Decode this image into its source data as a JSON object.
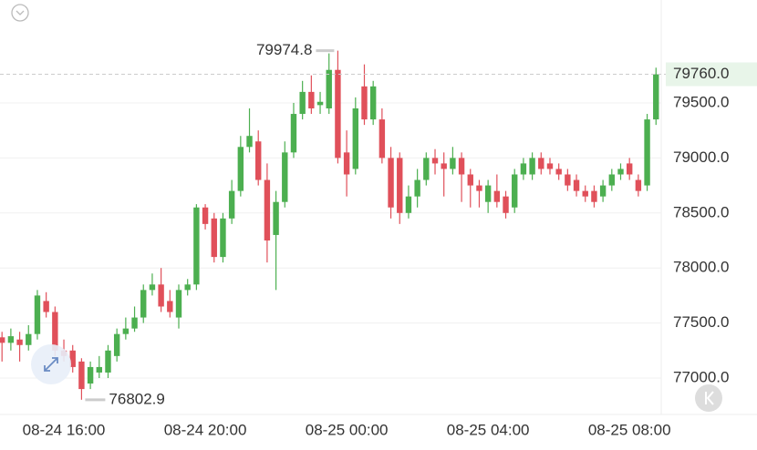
{
  "chart_data": {
    "type": "candlestick",
    "categories": [
      null,
      null,
      null,
      null,
      null,
      null,
      null,
      "08-24 16:00",
      null,
      null,
      null,
      null,
      null,
      null,
      null,
      null,
      null,
      null,
      null,
      null,
      null,
      null,
      null,
      "08-24 20:00",
      null,
      null,
      null,
      null,
      null,
      null,
      null,
      null,
      null,
      null,
      null,
      null,
      null,
      null,
      null,
      "08-25 00:00",
      null,
      null,
      null,
      null,
      null,
      null,
      null,
      null,
      null,
      null,
      null,
      null,
      null,
      null,
      null,
      "08-25 04:00",
      null,
      null,
      null,
      null,
      null,
      null,
      null,
      null,
      null,
      null,
      null,
      null,
      null,
      null,
      null,
      "08-25 08:00",
      null,
      null,
      null
    ],
    "open": [
      77370,
      77320,
      77350,
      77300,
      77400,
      77700,
      77600,
      77250,
      77250,
      77150,
      76950,
      77050,
      77050,
      77200,
      77400,
      77450,
      77550,
      77800,
      77850,
      77700,
      77550,
      77800,
      77850,
      78550,
      78450,
      78100,
      78450,
      78700,
      79100,
      79150,
      78800,
      78300,
      78600,
      79050,
      79400,
      79600,
      79480,
      79450,
      79800,
      79050,
      78900,
      79650,
      79350,
      79350,
      79000,
      79000,
      78500,
      78650,
      78800,
      79000,
      78950,
      78900,
      79000,
      78850,
      78750,
      78600,
      78700,
      78650,
      78550,
      78850,
      78850,
      79000,
      78950,
      78900,
      78850,
      78800,
      78700,
      78700,
      78650,
      78750,
      78850,
      78950,
      78800,
      78750,
      79350
    ],
    "high": [
      77420,
      77450,
      77420,
      77480,
      77800,
      77780,
      77650,
      77350,
      77300,
      77180,
      77150,
      77200,
      77300,
      77450,
      77550,
      77650,
      77850,
      77950,
      78000,
      77800,
      77850,
      77900,
      78580,
      78580,
      78500,
      78500,
      78800,
      79200,
      79450,
      79250,
      78950,
      78700,
      79150,
      79500,
      79700,
      79750,
      79600,
      79950,
      79974.8,
      79250,
      79550,
      79850,
      79700,
      79450,
      79100,
      79050,
      78750,
      78900,
      79050,
      79080,
      79050,
      79100,
      79050,
      78900,
      78800,
      78800,
      78850,
      78700,
      78900,
      79000,
      79050,
      79050,
      79000,
      78950,
      78900,
      78850,
      78750,
      78750,
      78800,
      78900,
      78950,
      79000,
      78850,
      79400,
      79820
    ],
    "low": [
      77150,
      77250,
      77150,
      77250,
      77350,
      77550,
      77200,
      77150,
      77050,
      76802.9,
      76900,
      77000,
      77000,
      77150,
      77350,
      77420,
      77500,
      77750,
      77600,
      77550,
      77450,
      77750,
      77800,
      78350,
      78050,
      78050,
      78400,
      78650,
      79050,
      78750,
      78050,
      77800,
      78550,
      79000,
      79350,
      79400,
      79400,
      79400,
      78950,
      78650,
      78850,
      79300,
      79300,
      78950,
      78450,
      78400,
      78450,
      78550,
      78750,
      78850,
      78650,
      78850,
      78600,
      78550,
      78550,
      78500,
      78550,
      78450,
      78500,
      78800,
      78800,
      78850,
      78850,
      78800,
      78700,
      78650,
      78600,
      78550,
      78600,
      78700,
      78800,
      78800,
      78650,
      78700,
      79300
    ],
    "close": [
      77320,
      77380,
      77300,
      77400,
      77750,
      77600,
      77250,
      77200,
      77100,
      76900,
      77100,
      77100,
      77250,
      77400,
      77450,
      77550,
      77800,
      77850,
      77650,
      77600,
      77800,
      77850,
      78550,
      78400,
      78100,
      78450,
      78700,
      79100,
      79200,
      78800,
      78250,
      78600,
      79050,
      79400,
      79600,
      79450,
      79510,
      79800,
      79000,
      78850,
      79450,
      79350,
      79650,
      79000,
      78550,
      78500,
      78650,
      78800,
      79000,
      78950,
      78900,
      79000,
      78850,
      78750,
      78700,
      78750,
      78600,
      78500,
      78850,
      78950,
      79000,
      78900,
      78900,
      78850,
      78750,
      78700,
      78650,
      78600,
      78750,
      78850,
      78900,
      78850,
      78700,
      79350,
      79760
    ],
    "up_color": "#4caf50",
    "down_color": "#e0505a",
    "last_price": {
      "value": 79760,
      "label": "79760.0"
    },
    "ylim": [
      76669,
      80435
    ],
    "yticks": [
      {
        "value": 77000,
        "label": "77000.0"
      },
      {
        "value": 77500,
        "label": "77500.0"
      },
      {
        "value": 78000,
        "label": "78000.0"
      },
      {
        "value": 78500,
        "label": "78500.0"
      },
      {
        "value": 79000,
        "label": "79000.0"
      },
      {
        "value": 79500,
        "label": "79500.0"
      }
    ],
    "grid": true
  }
}
